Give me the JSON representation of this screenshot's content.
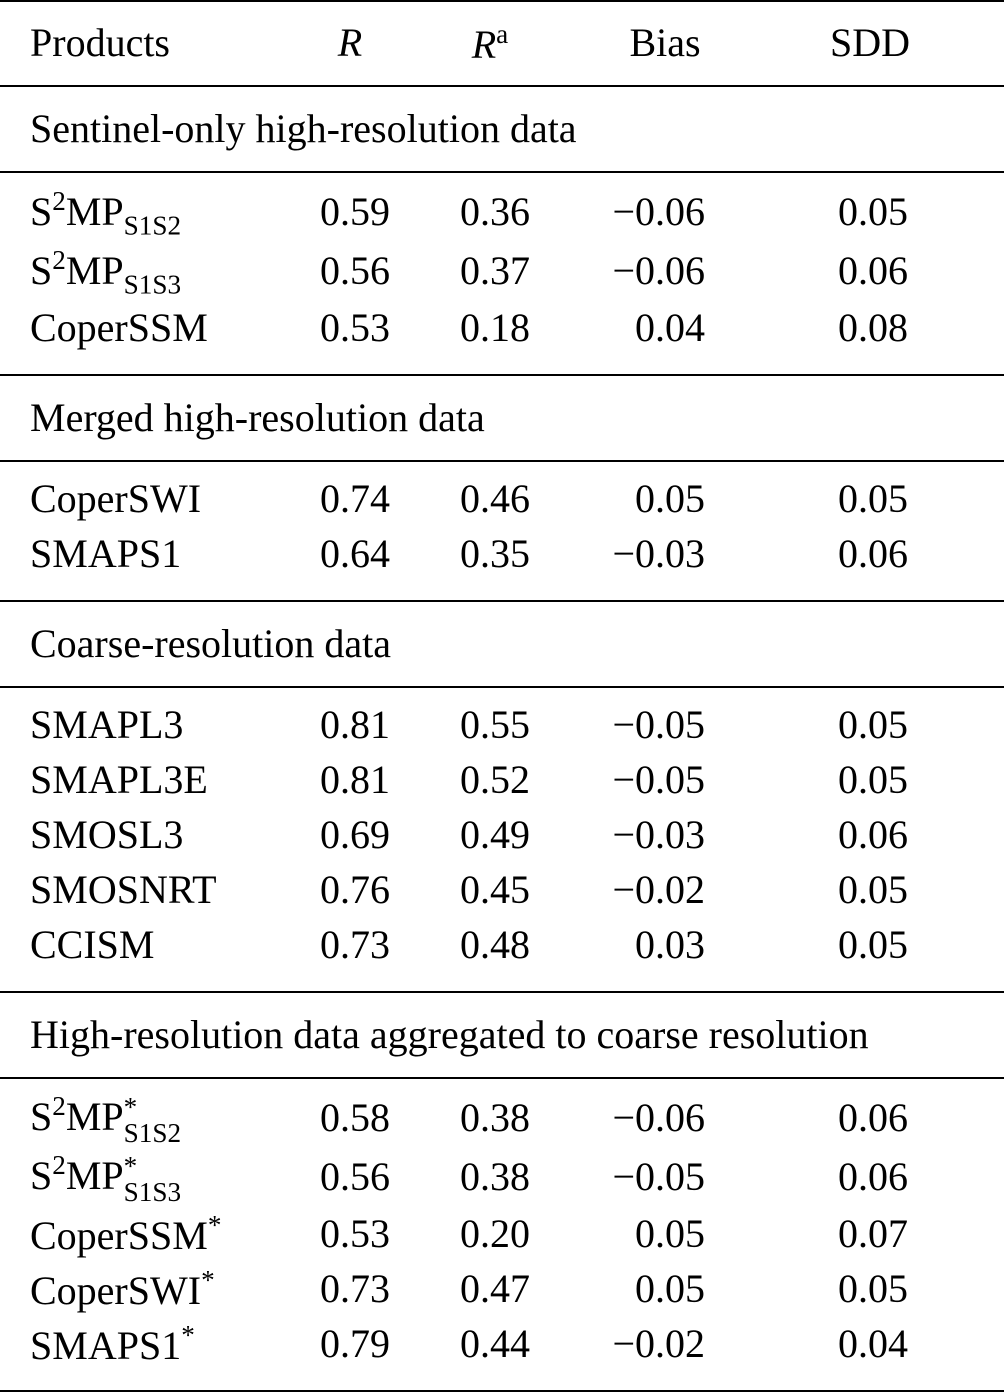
{
  "header": [
    {
      "text": "Products"
    },
    {
      "text": "R",
      "italic": true
    },
    {
      "text": "R",
      "italic": true,
      "sup": "a"
    },
    {
      "text": "Bias"
    },
    {
      "text": "SDD"
    }
  ],
  "groups": [
    {
      "heading": "Sentinel-only high-resolution data",
      "rows": [
        {
          "product": [
            {
              "text": "S"
            },
            {
              "text": "2",
              "pos": "sup"
            },
            {
              "text": "MP"
            },
            {
              "text": "S1S2",
              "pos": "sub"
            }
          ],
          "values": [
            "0.59",
            "0.36",
            "−0.06",
            "0.05"
          ]
        },
        {
          "product": [
            {
              "text": "S"
            },
            {
              "text": "2",
              "pos": "sup"
            },
            {
              "text": "MP"
            },
            {
              "text": "S1S3",
              "pos": "sub"
            }
          ],
          "values": [
            "0.56",
            "0.37",
            "−0.06",
            "0.06"
          ]
        },
        {
          "product": [
            {
              "text": "CoperSSM"
            }
          ],
          "values": [
            "0.53",
            "0.18",
            "0.04",
            "0.08"
          ]
        }
      ]
    },
    {
      "heading": "Merged high-resolution data",
      "rows": [
        {
          "product": [
            {
              "text": "CoperSWI"
            }
          ],
          "values": [
            "0.74",
            "0.46",
            "0.05",
            "0.05"
          ]
        },
        {
          "product": [
            {
              "text": "SMAPS1"
            }
          ],
          "values": [
            "0.64",
            "0.35",
            "−0.03",
            "0.06"
          ]
        }
      ]
    },
    {
      "heading": "Coarse-resolution data",
      "rows": [
        {
          "product": [
            {
              "text": "SMAPL3"
            }
          ],
          "values": [
            "0.81",
            "0.55",
            "−0.05",
            "0.05"
          ]
        },
        {
          "product": [
            {
              "text": "SMAPL3E"
            }
          ],
          "values": [
            "0.81",
            "0.52",
            "−0.05",
            "0.05"
          ]
        },
        {
          "product": [
            {
              "text": "SMOSL3"
            }
          ],
          "values": [
            "0.69",
            "0.49",
            "−0.03",
            "0.06"
          ]
        },
        {
          "product": [
            {
              "text": "SMOSNRT"
            }
          ],
          "values": [
            "0.76",
            "0.45",
            "−0.02",
            "0.05"
          ]
        },
        {
          "product": [
            {
              "text": "CCISM"
            }
          ],
          "values": [
            "0.73",
            "0.48",
            "0.03",
            "0.05"
          ]
        }
      ]
    },
    {
      "heading": "High-resolution data aggregated to coarse resolution",
      "rows": [
        {
          "product": [
            {
              "text": "S"
            },
            {
              "text": "2",
              "pos": "sup"
            },
            {
              "text": "MP"
            },
            {
              "sup": "*",
              "sub": "S1S2"
            }
          ],
          "values": [
            "0.58",
            "0.38",
            "−0.06",
            "0.06"
          ]
        },
        {
          "product": [
            {
              "text": "S"
            },
            {
              "text": "2",
              "pos": "sup"
            },
            {
              "text": "MP"
            },
            {
              "sup": "*",
              "sub": "S1S3"
            }
          ],
          "values": [
            "0.56",
            "0.38",
            "−0.05",
            "0.06"
          ]
        },
        {
          "product": [
            {
              "text": "CoperSSM"
            },
            {
              "text": "*",
              "pos": "sup"
            }
          ],
          "values": [
            "0.53",
            "0.20",
            "0.05",
            "0.07"
          ]
        },
        {
          "product": [
            {
              "text": "CoperSWI"
            },
            {
              "text": "*",
              "pos": "sup"
            }
          ],
          "values": [
            "0.73",
            "0.47",
            "0.05",
            "0.05"
          ]
        },
        {
          "product": [
            {
              "text": "SMAPS1"
            },
            {
              "text": "*",
              "pos": "sup"
            }
          ],
          "values": [
            "0.79",
            "0.44",
            "−0.02",
            "0.04"
          ]
        }
      ]
    }
  ]
}
